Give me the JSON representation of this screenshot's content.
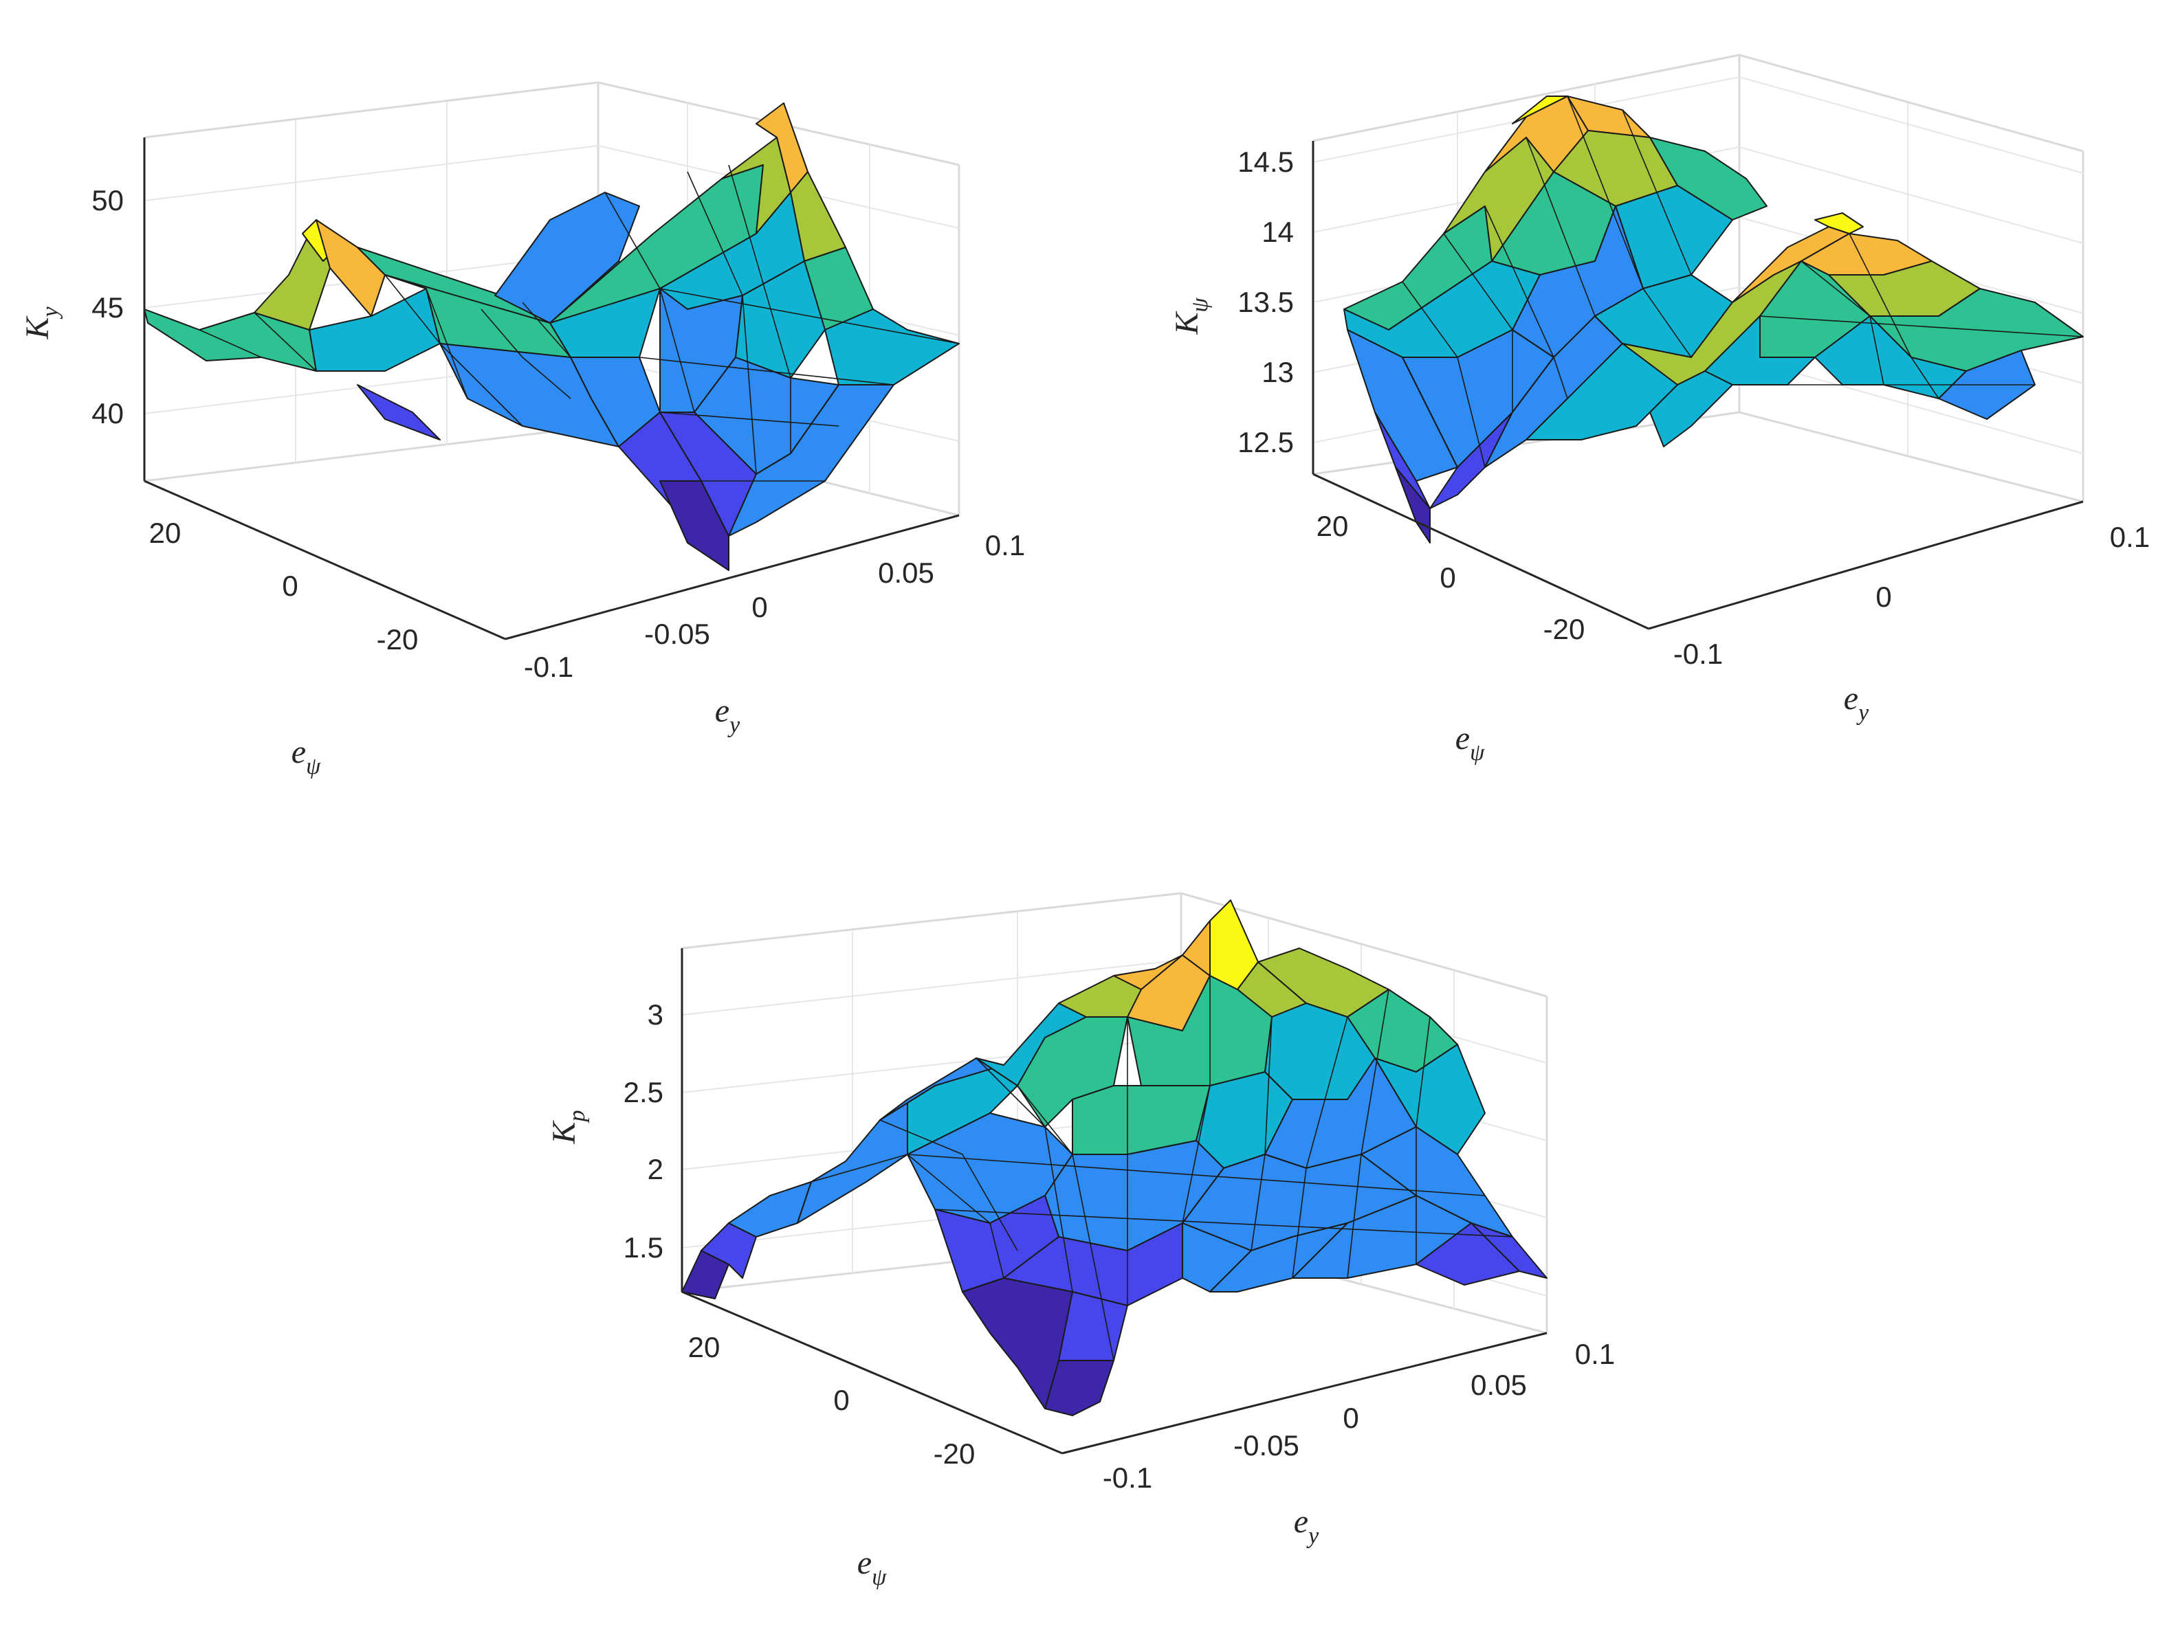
{
  "chart_data": [
    {
      "type": "surface",
      "zlabel": "K",
      "zlabel_sub": "y",
      "xlabel": "e",
      "xlabel_sub": "y",
      "ylabel": "e",
      "ylabel_sub": "ψ",
      "x_ticks": [
        "-0.1",
        "-0.05",
        "0",
        "0.05",
        "0.1"
      ],
      "y_ticks": [
        "20",
        "0",
        "-20"
      ],
      "z_ticks": [
        "50",
        "45",
        "40"
      ],
      "xlim": [
        -0.1,
        0.1
      ],
      "ylim": [
        -30,
        30
      ],
      "zlim": [
        37,
        53
      ],
      "grid": true,
      "colormap": "parula",
      "colormap_colors": [
        "#3e26a8",
        "#4746eb",
        "#2f8cf3",
        "#10b4d2",
        "#2ec191",
        "#a8c63a",
        "#f7b83b",
        "#f9f914"
      ],
      "surface_shape": "V-shaped valley along e_y, minimum ~37 at e_y = 0, e_psi = -30; ridge at e_y = 0, e_psi = +30 near 48; edges at e_y = +/-0.1 around 44-53"
    },
    {
      "type": "surface",
      "zlabel": "K",
      "zlabel_sub": "ψ",
      "xlabel": "e",
      "xlabel_sub": "y",
      "ylabel": "e",
      "ylabel_sub": "ψ",
      "x_ticks": [
        "-0.1",
        "0",
        "0.1"
      ],
      "y_ticks": [
        "20",
        "0",
        "-20"
      ],
      "z_ticks": [
        "14.5",
        "14",
        "13.5",
        "13",
        "12.5"
      ],
      "xlim": [
        -0.1,
        0.1
      ],
      "ylim": [
        -30,
        30
      ],
      "zlim": [
        12.2,
        14.8
      ],
      "grid": true,
      "colormap": "parula",
      "colormap_colors": [
        "#3e26a8",
        "#4746eb",
        "#2f8cf3",
        "#10b4d2",
        "#2ec191",
        "#a8c63a",
        "#f7b83b",
        "#f9f914"
      ],
      "surface_shape": "Ridge along e_psi = 0 peaking ~14.7 at e_y = -0.1; valley minimum ~12.2 at e_y = -0.1, e_psi = +30"
    },
    {
      "type": "surface",
      "zlabel": "K",
      "zlabel_sub": "p",
      "xlabel": "e",
      "xlabel_sub": "y",
      "ylabel": "e",
      "ylabel_sub": "ψ",
      "x_ticks": [
        "-0.1",
        "-0.05",
        "0",
        "0.05",
        "0.1"
      ],
      "y_ticks": [
        "20",
        "0",
        "-20"
      ],
      "z_ticks": [
        "3",
        "2.5",
        "2",
        "1.5"
      ],
      "xlim": [
        -0.1,
        0.1
      ],
      "ylim": [
        -30,
        30
      ],
      "zlim": [
        1.2,
        3.4
      ],
      "grid": true,
      "colormap": "parula",
      "colormap_colors": [
        "#3e26a8",
        "#4746eb",
        "#2f8cf3",
        "#10b4d2",
        "#2ec191",
        "#a8c63a",
        "#f7b83b",
        "#f9f914"
      ],
      "surface_shape": "Peak ~3.3 near e_y = 0, e_psi = +30; lowest ~1.2 at corners e_y = -0.1 and e_y = +0.1"
    }
  ]
}
